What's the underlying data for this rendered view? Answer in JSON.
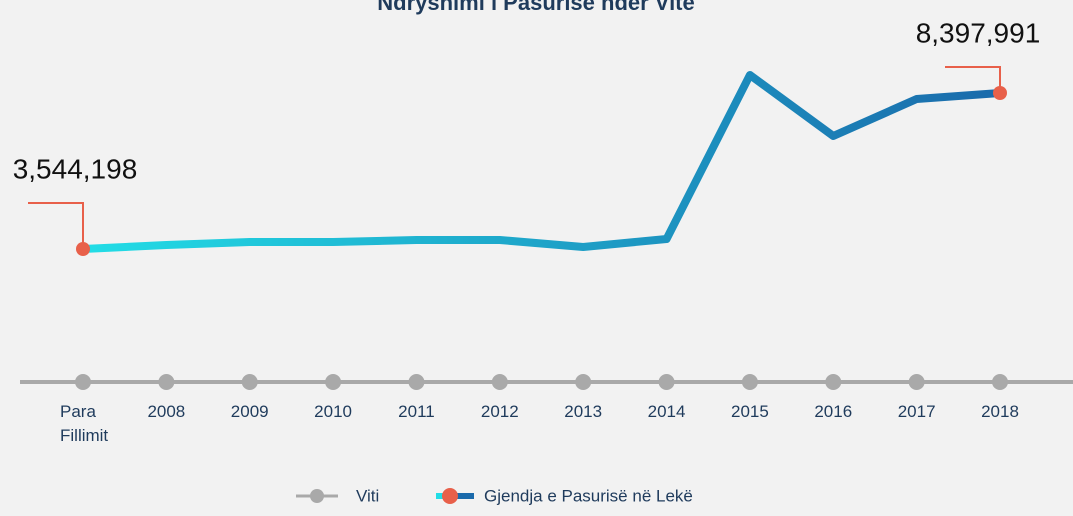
{
  "chart_data": {
    "type": "line",
    "title": "Ndryshimi i Pasurisë ndër Vite",
    "categories": [
      "Para Fillimit",
      "2008",
      "2009",
      "2010",
      "2011",
      "2012",
      "2013",
      "2014",
      "2015",
      "2016",
      "2017",
      "2018"
    ],
    "xlabel": "Viti",
    "series": [
      {
        "name": "Gjendja e Pasurisë në Lekë",
        "color": [
          "#22dde6",
          "#1a6aab"
        ],
        "marker_color": "#e8604a",
        "values": [
          3544198,
          3668000,
          3762000,
          3762000,
          3824000,
          3824000,
          3606000,
          3855000,
          8958000,
          7060000,
          8211000,
          8397991
        ],
        "value_labels": [
          "3,544,198",
          null,
          null,
          null,
          null,
          null,
          null,
          null,
          null,
          null,
          null,
          "8,397,991"
        ]
      }
    ],
    "axis_color": "#a9a9a9"
  }
}
